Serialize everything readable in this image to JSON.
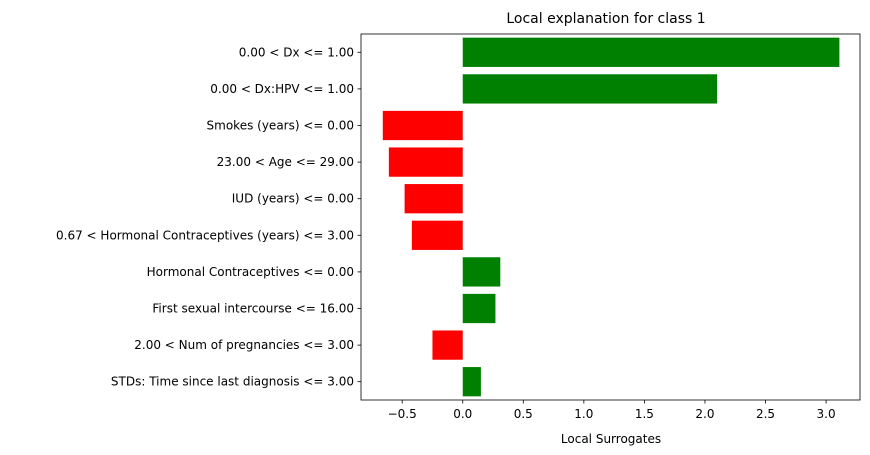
{
  "chart_data": {
    "type": "bar",
    "orientation": "horizontal",
    "title": "Local explanation for class 1",
    "xlabel": "Local Surrogates",
    "ylabel": "",
    "xlim": [
      -0.84,
      3.28
    ],
    "xticks": [
      -0.5,
      0.0,
      0.5,
      1.0,
      1.5,
      2.0,
      2.5,
      3.0
    ],
    "xtick_labels": [
      "−0.5",
      "0.0",
      "0.5",
      "1.0",
      "1.5",
      "2.0",
      "2.5",
      "3.0"
    ],
    "grid": false,
    "positive_color": "#008000",
    "negative_color": "#ff0000",
    "categories": [
      "0.00 < Dx <= 1.00",
      "0.00 < Dx:HPV <= 1.00",
      "Smokes (years) <= 0.00",
      "23.00 < Age <= 29.00",
      "IUD (years) <= 0.00",
      "0.67 < Hormonal Contraceptives (years) <= 3.00",
      "Hormonal Contraceptives <= 0.00",
      "First sexual intercourse <= 16.00",
      "2.00 < Num of pregnancies <= 3.00",
      "STDs: Time since last diagnosis <= 3.00"
    ],
    "values": [
      3.11,
      2.1,
      -0.66,
      -0.61,
      -0.48,
      -0.42,
      0.31,
      0.27,
      -0.25,
      0.15
    ]
  }
}
